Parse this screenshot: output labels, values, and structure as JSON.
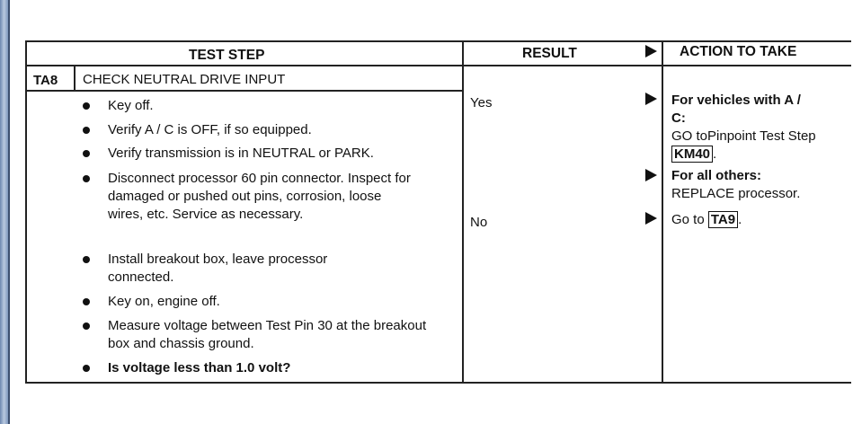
{
  "header": {
    "test_step": "TEST STEP",
    "result": "RESULT",
    "action": "ACTION TO TAKE"
  },
  "step": {
    "id": "TA8",
    "title": "CHECK NEUTRAL DRIVE INPUT",
    "items": [
      "Key off.",
      "Verify A / C is OFF, if so equipped.",
      "Verify transmission is in NEUTRAL or PARK.",
      "Disconnect processor 60 pin connector. Inspect for damaged or pushed out pins, corrosion, loose wires, etc. Service as necessary.",
      "Install breakout box, leave processor connected.",
      "Key on, engine off.",
      "Measure voltage between Test Pin 30 at the breakout box and chassis ground."
    ],
    "question": "Is voltage less than 1.0 volt?"
  },
  "results": [
    {
      "result": "Yes",
      "cases": [
        {
          "heading": "For vehicles with A / C:",
          "text": "GO toPinpoint Test Step",
          "link": "KM40",
          "end": "."
        },
        {
          "heading": "For all others:",
          "text": "REPLACE processor."
        }
      ]
    },
    {
      "result": "No",
      "cases": [
        {
          "text": "Go to",
          "link": "TA9",
          "end": "."
        }
      ]
    }
  ]
}
